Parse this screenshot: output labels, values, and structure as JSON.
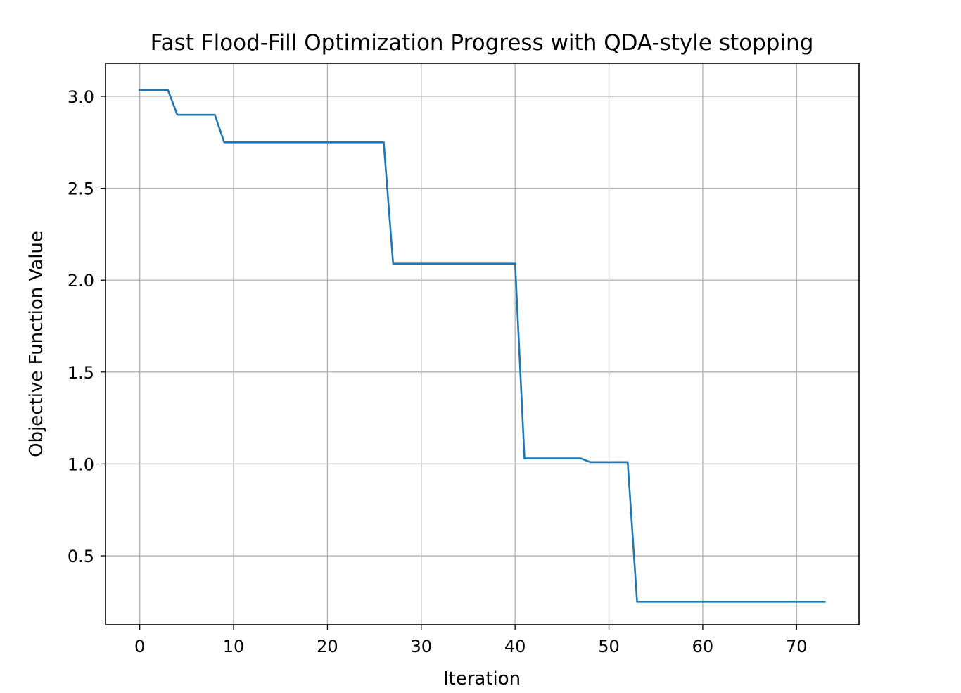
{
  "chart_data": {
    "type": "line",
    "title": "Fast Flood-Fill Optimization Progress with QDA-style stopping",
    "xlabel": "Iteration",
    "ylabel": "Objective Function Value",
    "xlim": [
      -3.65,
      76.65
    ],
    "ylim": [
      0.125,
      3.18
    ],
    "xticks": [
      0,
      10,
      20,
      30,
      40,
      50,
      60,
      70
    ],
    "xtick_labels": [
      "0",
      "10",
      "20",
      "30",
      "40",
      "50",
      "60",
      "70"
    ],
    "yticks": [
      0.5,
      1.0,
      1.5,
      2.0,
      2.5,
      3.0
    ],
    "ytick_labels": [
      "0.5",
      "1.0",
      "1.5",
      "2.0",
      "2.5",
      "3.0"
    ],
    "grid": true,
    "series": [
      {
        "color": "#1f77b4",
        "x": [
          0,
          1,
          2,
          3,
          4,
          5,
          6,
          7,
          8,
          9,
          10,
          11,
          12,
          13,
          14,
          15,
          16,
          17,
          18,
          19,
          20,
          21,
          22,
          23,
          24,
          25,
          26,
          27,
          28,
          29,
          30,
          31,
          32,
          33,
          34,
          35,
          36,
          37,
          38,
          39,
          40,
          41,
          42,
          43,
          44,
          45,
          46,
          47,
          48,
          49,
          50,
          51,
          52,
          53,
          54,
          55,
          56,
          57,
          58,
          59,
          60,
          61,
          62,
          63,
          64,
          65,
          66,
          67,
          68,
          69,
          70,
          71,
          72,
          73
        ],
        "y": [
          3.035,
          3.035,
          3.035,
          3.035,
          2.9,
          2.9,
          2.9,
          2.9,
          2.9,
          2.75,
          2.75,
          2.75,
          2.75,
          2.75,
          2.75,
          2.75,
          2.75,
          2.75,
          2.75,
          2.75,
          2.75,
          2.75,
          2.75,
          2.75,
          2.75,
          2.75,
          2.75,
          2.09,
          2.09,
          2.09,
          2.09,
          2.09,
          2.09,
          2.09,
          2.09,
          2.09,
          2.09,
          2.09,
          2.09,
          2.09,
          2.09,
          1.03,
          1.03,
          1.03,
          1.03,
          1.03,
          1.03,
          1.03,
          1.01,
          1.01,
          1.01,
          1.01,
          1.01,
          0.25,
          0.25,
          0.25,
          0.25,
          0.25,
          0.25,
          0.25,
          0.25,
          0.25,
          0.25,
          0.25,
          0.25,
          0.25,
          0.25,
          0.25,
          0.25,
          0.25,
          0.25,
          0.25,
          0.25,
          0.25
        ]
      }
    ]
  }
}
